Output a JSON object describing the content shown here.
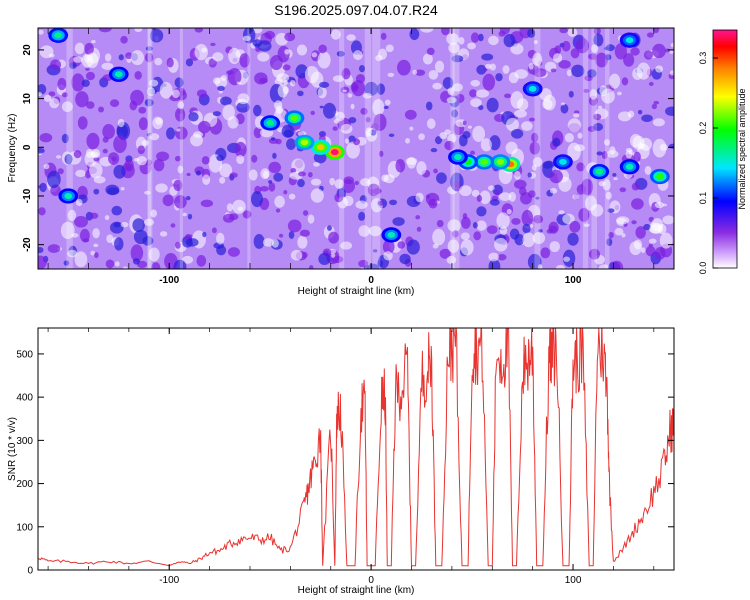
{
  "figure": {
    "title": "S196.2025.097.04.07.R24"
  },
  "chart_data": [
    {
      "type": "heatmap",
      "title": "S196.2025.097.04.07.R24",
      "xlabel": "Height of straight line (km)",
      "ylabel": "Frequency (Hz)",
      "xlim": [
        -165,
        150
      ],
      "ylim": [
        -25,
        24.5
      ],
      "x_ticks": [
        -100,
        0,
        100
      ],
      "y_ticks": [
        -20,
        -10,
        0,
        10,
        20
      ],
      "colorbar": {
        "label": "Normalized spectral amplitude",
        "range": [
          0,
          0.34
        ],
        "ticks": [
          0.0,
          0.1,
          0.2,
          0.3
        ],
        "colormap": [
          "#ffffff",
          "#8a2be2",
          "#0000ff",
          "#00e5ff",
          "#00ff00",
          "#ffff00",
          "#ff7f00",
          "#ff0000",
          "#ff1493"
        ]
      },
      "hot_spots": [
        {
          "x": -18,
          "y": -1,
          "value": 0.33
        },
        {
          "x": -25,
          "y": 0,
          "value": 0.22
        },
        {
          "x": -33,
          "y": 1,
          "value": 0.18
        },
        {
          "x": -38,
          "y": 6,
          "value": 0.16
        },
        {
          "x": -50,
          "y": 5,
          "value": 0.12
        },
        {
          "x": 69,
          "y": -3.5,
          "value": 0.25
        },
        {
          "x": 64,
          "y": -3,
          "value": 0.17
        },
        {
          "x": 56,
          "y": -3,
          "value": 0.16
        },
        {
          "x": 48,
          "y": -3,
          "value": 0.14
        },
        {
          "x": 43,
          "y": -2,
          "value": 0.11
        },
        {
          "x": 143,
          "y": -6,
          "value": 0.15
        },
        {
          "x": 113,
          "y": -5,
          "value": 0.12
        },
        {
          "x": 128,
          "y": -4,
          "value": 0.11
        },
        {
          "x": 95,
          "y": -3,
          "value": 0.1
        },
        {
          "x": -155,
          "y": 23,
          "value": 0.12
        },
        {
          "x": -125,
          "y": 15,
          "value": 0.11
        },
        {
          "x": -150,
          "y": -10,
          "value": 0.11
        },
        {
          "x": 80,
          "y": 12,
          "value": 0.1
        },
        {
          "x": 10,
          "y": -18,
          "value": 0.11
        },
        {
          "x": 128,
          "y": 22,
          "value": 0.1
        }
      ],
      "background_level": 0.05
    },
    {
      "type": "line",
      "xlabel": "Height of straight line (km)",
      "ylabel": "SNR (10 * v/v)",
      "xlim": [
        -165,
        150
      ],
      "ylim": [
        0,
        560
      ],
      "x_ticks": [
        -100,
        0,
        100
      ],
      "y_ticks": [
        0,
        100,
        200,
        300,
        400,
        500
      ],
      "color": "#e8332f",
      "series": [
        {
          "name": "",
          "x": [
            -165,
            -160,
            -150,
            -140,
            -130,
            -120,
            -110,
            -100,
            -95,
            -90,
            -85,
            -80,
            -75,
            -70,
            -65,
            -60,
            -55,
            -50,
            -45,
            -40,
            -35,
            -32,
            -30,
            -28,
            -25,
            -24,
            -20,
            -18,
            -17,
            -15,
            -12,
            -10,
            -8,
            -5,
            -3,
            -2,
            2,
            5,
            7,
            8,
            10,
            12,
            15,
            18,
            20,
            22,
            25,
            28,
            30,
            32,
            35,
            38,
            40,
            42,
            45,
            48,
            50,
            52,
            55,
            58,
            60,
            62,
            65,
            68,
            70,
            72,
            75,
            78,
            80,
            82,
            85,
            88,
            90,
            92,
            95,
            98,
            100,
            102,
            105,
            108,
            110,
            112,
            115,
            117,
            118,
            120,
            125,
            130,
            135,
            140,
            145,
            148,
            150
          ],
          "y": [
            30,
            20,
            20,
            15,
            20,
            15,
            20,
            10,
            20,
            15,
            25,
            40,
            45,
            60,
            70,
            75,
            70,
            75,
            45,
            50,
            120,
            170,
            210,
            250,
            320,
            10,
            330,
            10,
            360,
            370,
            10,
            10,
            10,
            380,
            380,
            10,
            10,
            390,
            400,
            10,
            10,
            410,
            420,
            470,
            10,
            10,
            440,
            470,
            480,
            10,
            10,
            510,
            520,
            530,
            10,
            10,
            510,
            520,
            510,
            10,
            10,
            510,
            490,
            520,
            10,
            10,
            460,
            490,
            510,
            10,
            10,
            480,
            500,
            510,
            10,
            10,
            480,
            490,
            500,
            10,
            10,
            520,
            510,
            400,
            200,
            20,
            50,
            90,
            130,
            180,
            240,
            320,
            340
          ]
        }
      ]
    }
  ]
}
